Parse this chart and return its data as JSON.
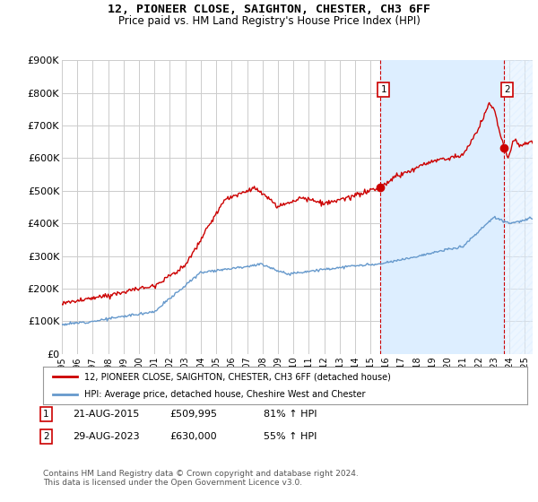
{
  "title": "12, PIONEER CLOSE, SAIGHTON, CHESTER, CH3 6FF",
  "subtitle": "Price paid vs. HM Land Registry's House Price Index (HPI)",
  "hpi_color": "#6699cc",
  "price_color": "#cc0000",
  "marker_color": "#cc0000",
  "shade_color": "#ddeeff",
  "background_color": "#ffffff",
  "plot_bg_color": "#ffffff",
  "grid_color": "#cccccc",
  "ylim": [
    0,
    900000
  ],
  "yticks": [
    0,
    100000,
    200000,
    300000,
    400000,
    500000,
    600000,
    700000,
    800000,
    900000
  ],
  "ytick_labels": [
    "£0",
    "£100K",
    "£200K",
    "£300K",
    "£400K",
    "£500K",
    "£600K",
    "£700K",
    "£800K",
    "£900K"
  ],
  "sale1_x": 2015.65,
  "sale1_y": 509995,
  "sale1_label": "1",
  "sale2_x": 2023.66,
  "sale2_y": 630000,
  "sale2_label": "2",
  "annotation1_date": "21-AUG-2015",
  "annotation1_price": "£509,995",
  "annotation1_pct": "81% ↑ HPI",
  "annotation2_date": "29-AUG-2023",
  "annotation2_price": "£630,000",
  "annotation2_pct": "55% ↑ HPI",
  "legend_label1": "12, PIONEER CLOSE, SAIGHTON, CHESTER, CH3 6FF (detached house)",
  "legend_label2": "HPI: Average price, detached house, Cheshire West and Chester",
  "footnote": "Contains HM Land Registry data © Crown copyright and database right 2024.\nThis data is licensed under the Open Government Licence v3.0.",
  "xlim_start": 1995,
  "xlim_end": 2025.5
}
